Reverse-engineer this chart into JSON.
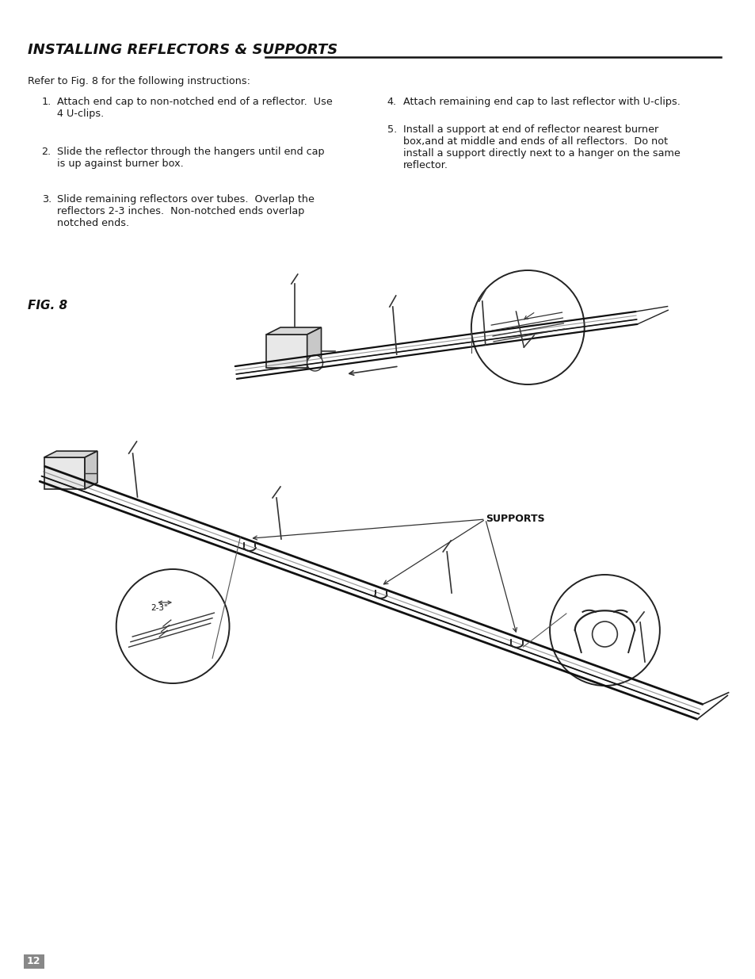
{
  "title": "INSTALLING REFLECTORS & SUPPORTS",
  "page_number": "12",
  "background_color": "#ffffff",
  "text_color": "#1a1a1a",
  "intro_text": "Refer to Fig. 8 for the following instructions:",
  "left_items": [
    {
      "num": "1.",
      "text": "Attach end cap to non-notched end of a reflector.  Use\n4 U-clips."
    },
    {
      "num": "2.",
      "text": "Slide the reflector through the hangers until end cap\nis up against burner box."
    },
    {
      "num": "3.",
      "text": "Slide remaining reflectors over tubes.  Overlap the\nreflectors 2-3 inches.  Non-notched ends overlap\nnotched ends."
    }
  ],
  "right_items": [
    {
      "num": "4.",
      "text": "Attach remaining end cap to last reflector with U-clips."
    },
    {
      "num": "5.",
      "text": "Install a support at end of reflector nearest burner\nbox,and at middle and ends of all reflectors.  Do not\ninstall a support directly next to a hanger on the same\nreflector."
    }
  ],
  "fig_label": "FIG. 8",
  "supports_label": "SUPPORTS",
  "overlap_label": "2-3\""
}
